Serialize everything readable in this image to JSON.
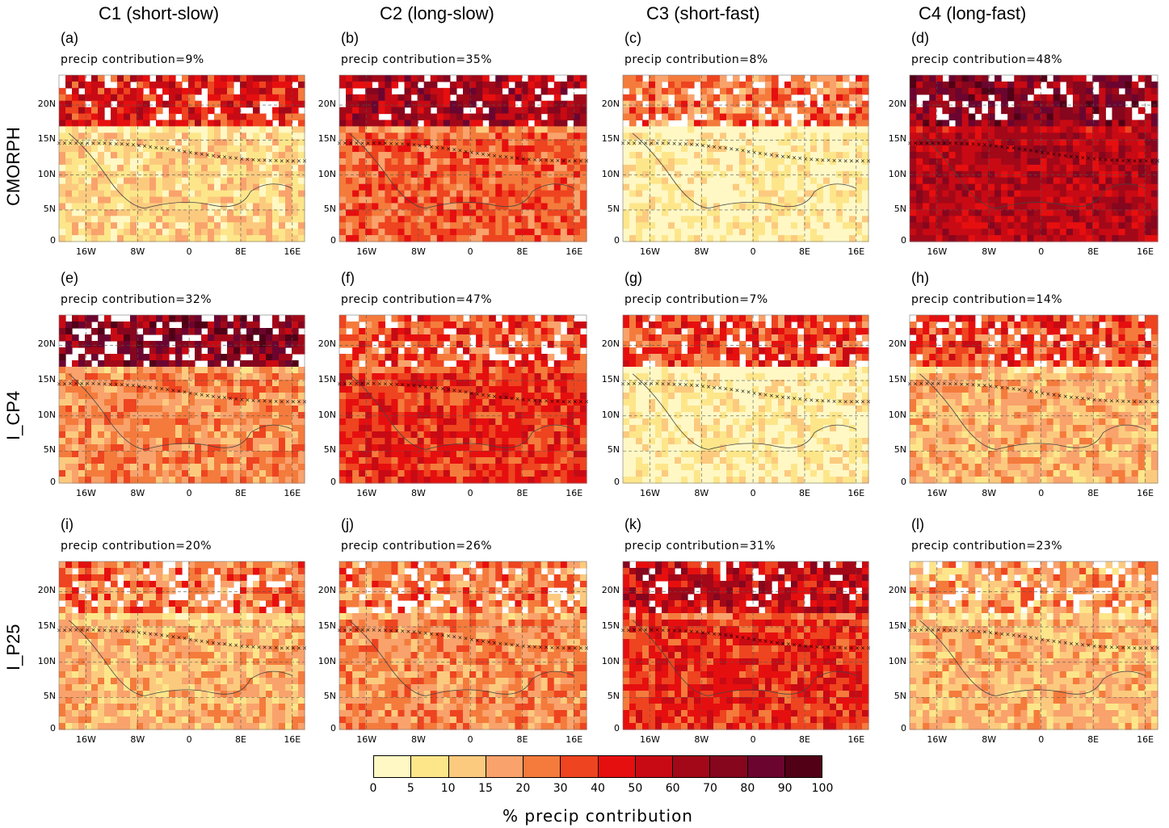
{
  "columns": [
    {
      "title": "C1 (short-slow)"
    },
    {
      "title": "C2 (long-slow)"
    },
    {
      "title": "C3 (short-fast)"
    },
    {
      "title": "C4 (long-fast)"
    }
  ],
  "rows": [
    {
      "label": "CMORPH"
    },
    {
      "label": "I_CP4"
    },
    {
      "label": "I_P25"
    }
  ],
  "panels": [
    {
      "letter": "(a)",
      "contribution": "precip contribution=9%",
      "level": 2,
      "north": 6
    },
    {
      "letter": "(b)",
      "contribution": "precip contribution=35%",
      "level": 5,
      "north": 8
    },
    {
      "letter": "(c)",
      "contribution": "precip contribution=8%",
      "level": 1,
      "north": 4
    },
    {
      "letter": "(d)",
      "contribution": "precip contribution=48%",
      "level": 8,
      "north": 9
    },
    {
      "letter": "(e)",
      "contribution": "precip contribution=32%",
      "level": 4,
      "north": 9
    },
    {
      "letter": "(f)",
      "contribution": "precip contribution=47%",
      "level": 6,
      "north": 5
    },
    {
      "letter": "(g)",
      "contribution": "precip contribution=7%",
      "level": 1,
      "north": 5
    },
    {
      "letter": "(h)",
      "contribution": "precip contribution=14%",
      "level": 3,
      "north": 5
    },
    {
      "letter": "(i)",
      "contribution": "precip contribution=20%",
      "level": 3,
      "north": 4
    },
    {
      "letter": "(j)",
      "contribution": "precip contribution=26%",
      "level": 4,
      "north": 4
    },
    {
      "letter": "(k)",
      "contribution": "precip contribution=31%",
      "level": 6,
      "north": 7
    },
    {
      "letter": "(l)",
      "contribution": "precip contribution=23%",
      "level": 3,
      "north": 3
    }
  ],
  "axes": {
    "yticks": [
      "0",
      "5N",
      "10N",
      "15N",
      "20N"
    ],
    "xticks": [
      "16W",
      "8W",
      "0",
      "8E",
      "16E"
    ]
  },
  "colorbar": {
    "labels": [
      "0",
      "5",
      "10",
      "15",
      "20",
      "30",
      "40",
      "50",
      "60",
      "70",
      "80",
      "90",
      "100"
    ],
    "colors": [
      "#fff8c4",
      "#fde68a",
      "#fcca7e",
      "#f9a26c",
      "#f47b3c",
      "#ee4420",
      "#e60f0f",
      "#c80a14",
      "#a30818",
      "#86061e",
      "#6b0530",
      "#520016"
    ],
    "title": "% precip contribution"
  }
}
